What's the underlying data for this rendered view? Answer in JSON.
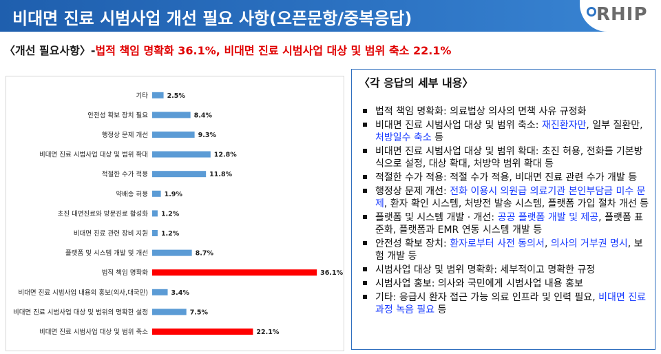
{
  "header": {
    "title": "비대면 진료 시범사업 개선 필요 사항(오픈문항/중복응답)",
    "logo_text": "RHIP"
  },
  "subtitle": {
    "prefix": "〈개선 필요사항〉-",
    "highlight": "법적 책임 명확화 36.1%, 비대면 진료 시범사업 대상 및 범위 축소 22.1%"
  },
  "colors": {
    "normal_bar": "#5b9bd5",
    "highlight_bar": "#ff0000",
    "accent": "#2d74c4"
  },
  "chart_data": {
    "type": "bar",
    "orientation": "horizontal",
    "categories": [
      "기타",
      "안전성 확보 장치 필요",
      "행정상 문제 개선",
      "비대면 진료 시범사업 대상 및 범위 확대",
      "적절한 수가 적용",
      "약배송 허용",
      "초진 대면진료와 방문진료 활성화",
      "비대면 진료 관련 장비 지원",
      "플랫폼 및 시스템 개발 및 개선",
      "법적 책임 명확화",
      "비대면 진료 시범사업 내용의 홍보(의사,대국민)",
      "비대면 진료 시범사업 대상 및 범위의 명확한 설정",
      "비대면 진료 시범사업 대상 및 범위 축소"
    ],
    "values": [
      2.5,
      8.4,
      9.3,
      12.8,
      11.8,
      1.9,
      1.2,
      1.2,
      8.7,
      36.1,
      3.4,
      7.5,
      22.1
    ],
    "labels": [
      "2.5%",
      "8.4%",
      "9.3%",
      "12.8%",
      "11.8%",
      "1.9%",
      "1.2%",
      "1.2%",
      "8.7%",
      "36.1%",
      "3.4%",
      "7.5%",
      "22.1%"
    ],
    "highlighted": [
      false,
      false,
      false,
      false,
      false,
      false,
      false,
      false,
      false,
      true,
      false,
      false,
      true
    ],
    "xlim": [
      0,
      40
    ],
    "grid": false,
    "legend": "none"
  },
  "details": {
    "title": "〈각 응답의 세부 내용〉",
    "items": [
      {
        "parts": [
          {
            "text": "법적 책임 명확화: 의료법상 의사의 면책 사유 규정화",
            "blue": false
          }
        ]
      },
      {
        "parts": [
          {
            "text": "비대면 진료 시범사업 대상 및 범위 축소: ",
            "blue": false
          },
          {
            "text": "재진환자만",
            "blue": true
          },
          {
            "text": ", 일부 질환만, ",
            "blue": false
          },
          {
            "text": "처방일수 축소",
            "blue": true
          },
          {
            "text": " 등",
            "blue": false
          }
        ]
      },
      {
        "parts": [
          {
            "text": "비대면 진료 시범사업 대상 및 범위 확대: 초진 허용, 전화를 기본방식으로 설정, 대상 확대, 처방약 범위 확대 등",
            "blue": false
          }
        ]
      },
      {
        "parts": [
          {
            "text": "적절한 수가 적용: 적절 수가 적용, 비대면 진료 관련 수가 개발 등",
            "blue": false
          }
        ]
      },
      {
        "parts": [
          {
            "text": "행정상 문제 개선: ",
            "blue": false
          },
          {
            "text": "전화 이용시 의원급 의료기관 본인부담금 미수 문제",
            "blue": true
          },
          {
            "text": ", 환자 확인 시스템, 처방전 발송 시스템, 플랫폼 가입 절차 개선 등",
            "blue": false
          }
        ]
      },
      {
        "parts": [
          {
            "text": "플랫폼 및 시스템 개발 · 개선: ",
            "blue": false
          },
          {
            "text": "공공 플랫폼 개발 및 제공",
            "blue": true
          },
          {
            "text": ", 플랫폼 표준화, 플랫폼과 EMR 연동 시스템 개발 등",
            "blue": false
          }
        ]
      },
      {
        "parts": [
          {
            "text": "안전성 확보 장치: ",
            "blue": false
          },
          {
            "text": "환자로부터 사전 동의서",
            "blue": true
          },
          {
            "text": ", ",
            "blue": false
          },
          {
            "text": "의사의 거부권 명시",
            "blue": true
          },
          {
            "text": ", 보험 개발 등",
            "blue": false
          }
        ]
      },
      {
        "parts": [
          {
            "text": "시범사업 대상 및 범위 명확화: 세부적이고 명확한 규정",
            "blue": false
          }
        ]
      },
      {
        "parts": [
          {
            "text": "시범사업 홍보: 의사와 국민에게 시범사업 내용 홍보",
            "blue": false
          }
        ]
      },
      {
        "parts": [
          {
            "text": "기타: 응급시 환자 접근 가능 의료 인프라 및 인력 필요, ",
            "blue": false
          },
          {
            "text": "비대면 진료 과정 녹음 필요",
            "blue": true
          },
          {
            "text": " 등",
            "blue": false
          }
        ]
      }
    ]
  }
}
